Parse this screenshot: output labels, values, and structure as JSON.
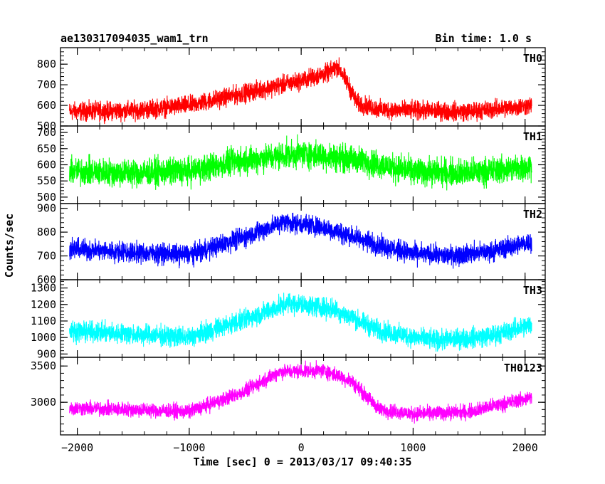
{
  "header": {
    "title": "ae130317094035_wam1_trn",
    "bin_time": "Bin time: 1.0 s"
  },
  "chart_data": {
    "type": "line",
    "title": "ae130317094035_wam1_trn",
    "subtitle": "Bin time: 1.0 s",
    "xlabel": "Time [sec] 0 = 2013/03/17 09:40:35",
    "ylabel": "Counts/sec",
    "xlim": [
      -2150,
      2180
    ],
    "x_ticks": [
      -2000,
      -1000,
      0,
      1000,
      2000
    ],
    "x_range": [
      -2070,
      2060
    ],
    "grid": false,
    "panels": [
      {
        "name": "TH0",
        "color": "#ff0000",
        "ylim": [
          500,
          880
        ],
        "y_ticks": [
          500,
          600,
          700,
          800
        ],
        "trend": [
          [
            -2070,
            570
          ],
          [
            -1500,
            575
          ],
          [
            -1000,
            600
          ],
          [
            -500,
            660
          ],
          [
            0,
            720
          ],
          [
            250,
            760
          ],
          [
            330,
            790
          ],
          [
            420,
            700
          ],
          [
            500,
            610
          ],
          [
            700,
            580
          ],
          [
            1000,
            575
          ],
          [
            1500,
            570
          ],
          [
            2060,
            600
          ]
        ],
        "noise": 40
      },
      {
        "name": "TH1",
        "color": "#00ff00",
        "ylim": [
          480,
          720
        ],
        "y_ticks": [
          500,
          550,
          600,
          650,
          700
        ],
        "trend": [
          [
            -2070,
            580
          ],
          [
            -1500,
            575
          ],
          [
            -1000,
            580
          ],
          [
            -500,
            615
          ],
          [
            0,
            635
          ],
          [
            500,
            615
          ],
          [
            1000,
            580
          ],
          [
            1500,
            575
          ],
          [
            2060,
            595
          ]
        ],
        "noise": 38
      },
      {
        "name": "TH2",
        "color": "#0000ff",
        "ylim": [
          600,
          920
        ],
        "y_ticks": [
          600,
          700,
          800,
          900
        ],
        "trend": [
          [
            -2070,
            730
          ],
          [
            -1500,
            715
          ],
          [
            -1000,
            705
          ],
          [
            -500,
            780
          ],
          [
            -150,
            845
          ],
          [
            200,
            820
          ],
          [
            700,
            745
          ],
          [
            1000,
            710
          ],
          [
            1300,
            700
          ],
          [
            1700,
            720
          ],
          [
            2060,
            760
          ]
        ],
        "noise": 38
      },
      {
        "name": "TH3",
        "color": "#00ffff",
        "ylim": [
          880,
          1350
        ],
        "y_ticks": [
          900,
          1000,
          1100,
          1200,
          1300
        ],
        "trend": [
          [
            -2070,
            1040
          ],
          [
            -1500,
            1020
          ],
          [
            -1000,
            1000
          ],
          [
            -500,
            1110
          ],
          [
            -100,
            1210
          ],
          [
            300,
            1170
          ],
          [
            700,
            1040
          ],
          [
            1200,
            980
          ],
          [
            1700,
            1010
          ],
          [
            2060,
            1080
          ]
        ],
        "noise": 55
      },
      {
        "name": "TH0123",
        "color": "#ff00ff",
        "ylim": [
          2550,
          3620
        ],
        "y_ticks": [
          3000,
          3500
        ],
        "trend": [
          [
            -2070,
            2920
          ],
          [
            -1500,
            2900
          ],
          [
            -1000,
            2870
          ],
          [
            -500,
            3150
          ],
          [
            -200,
            3420
          ],
          [
            200,
            3440
          ],
          [
            450,
            3290
          ],
          [
            700,
            2900
          ],
          [
            1000,
            2840
          ],
          [
            1500,
            2870
          ],
          [
            2060,
            3070
          ]
        ],
        "noise": 90
      }
    ]
  }
}
